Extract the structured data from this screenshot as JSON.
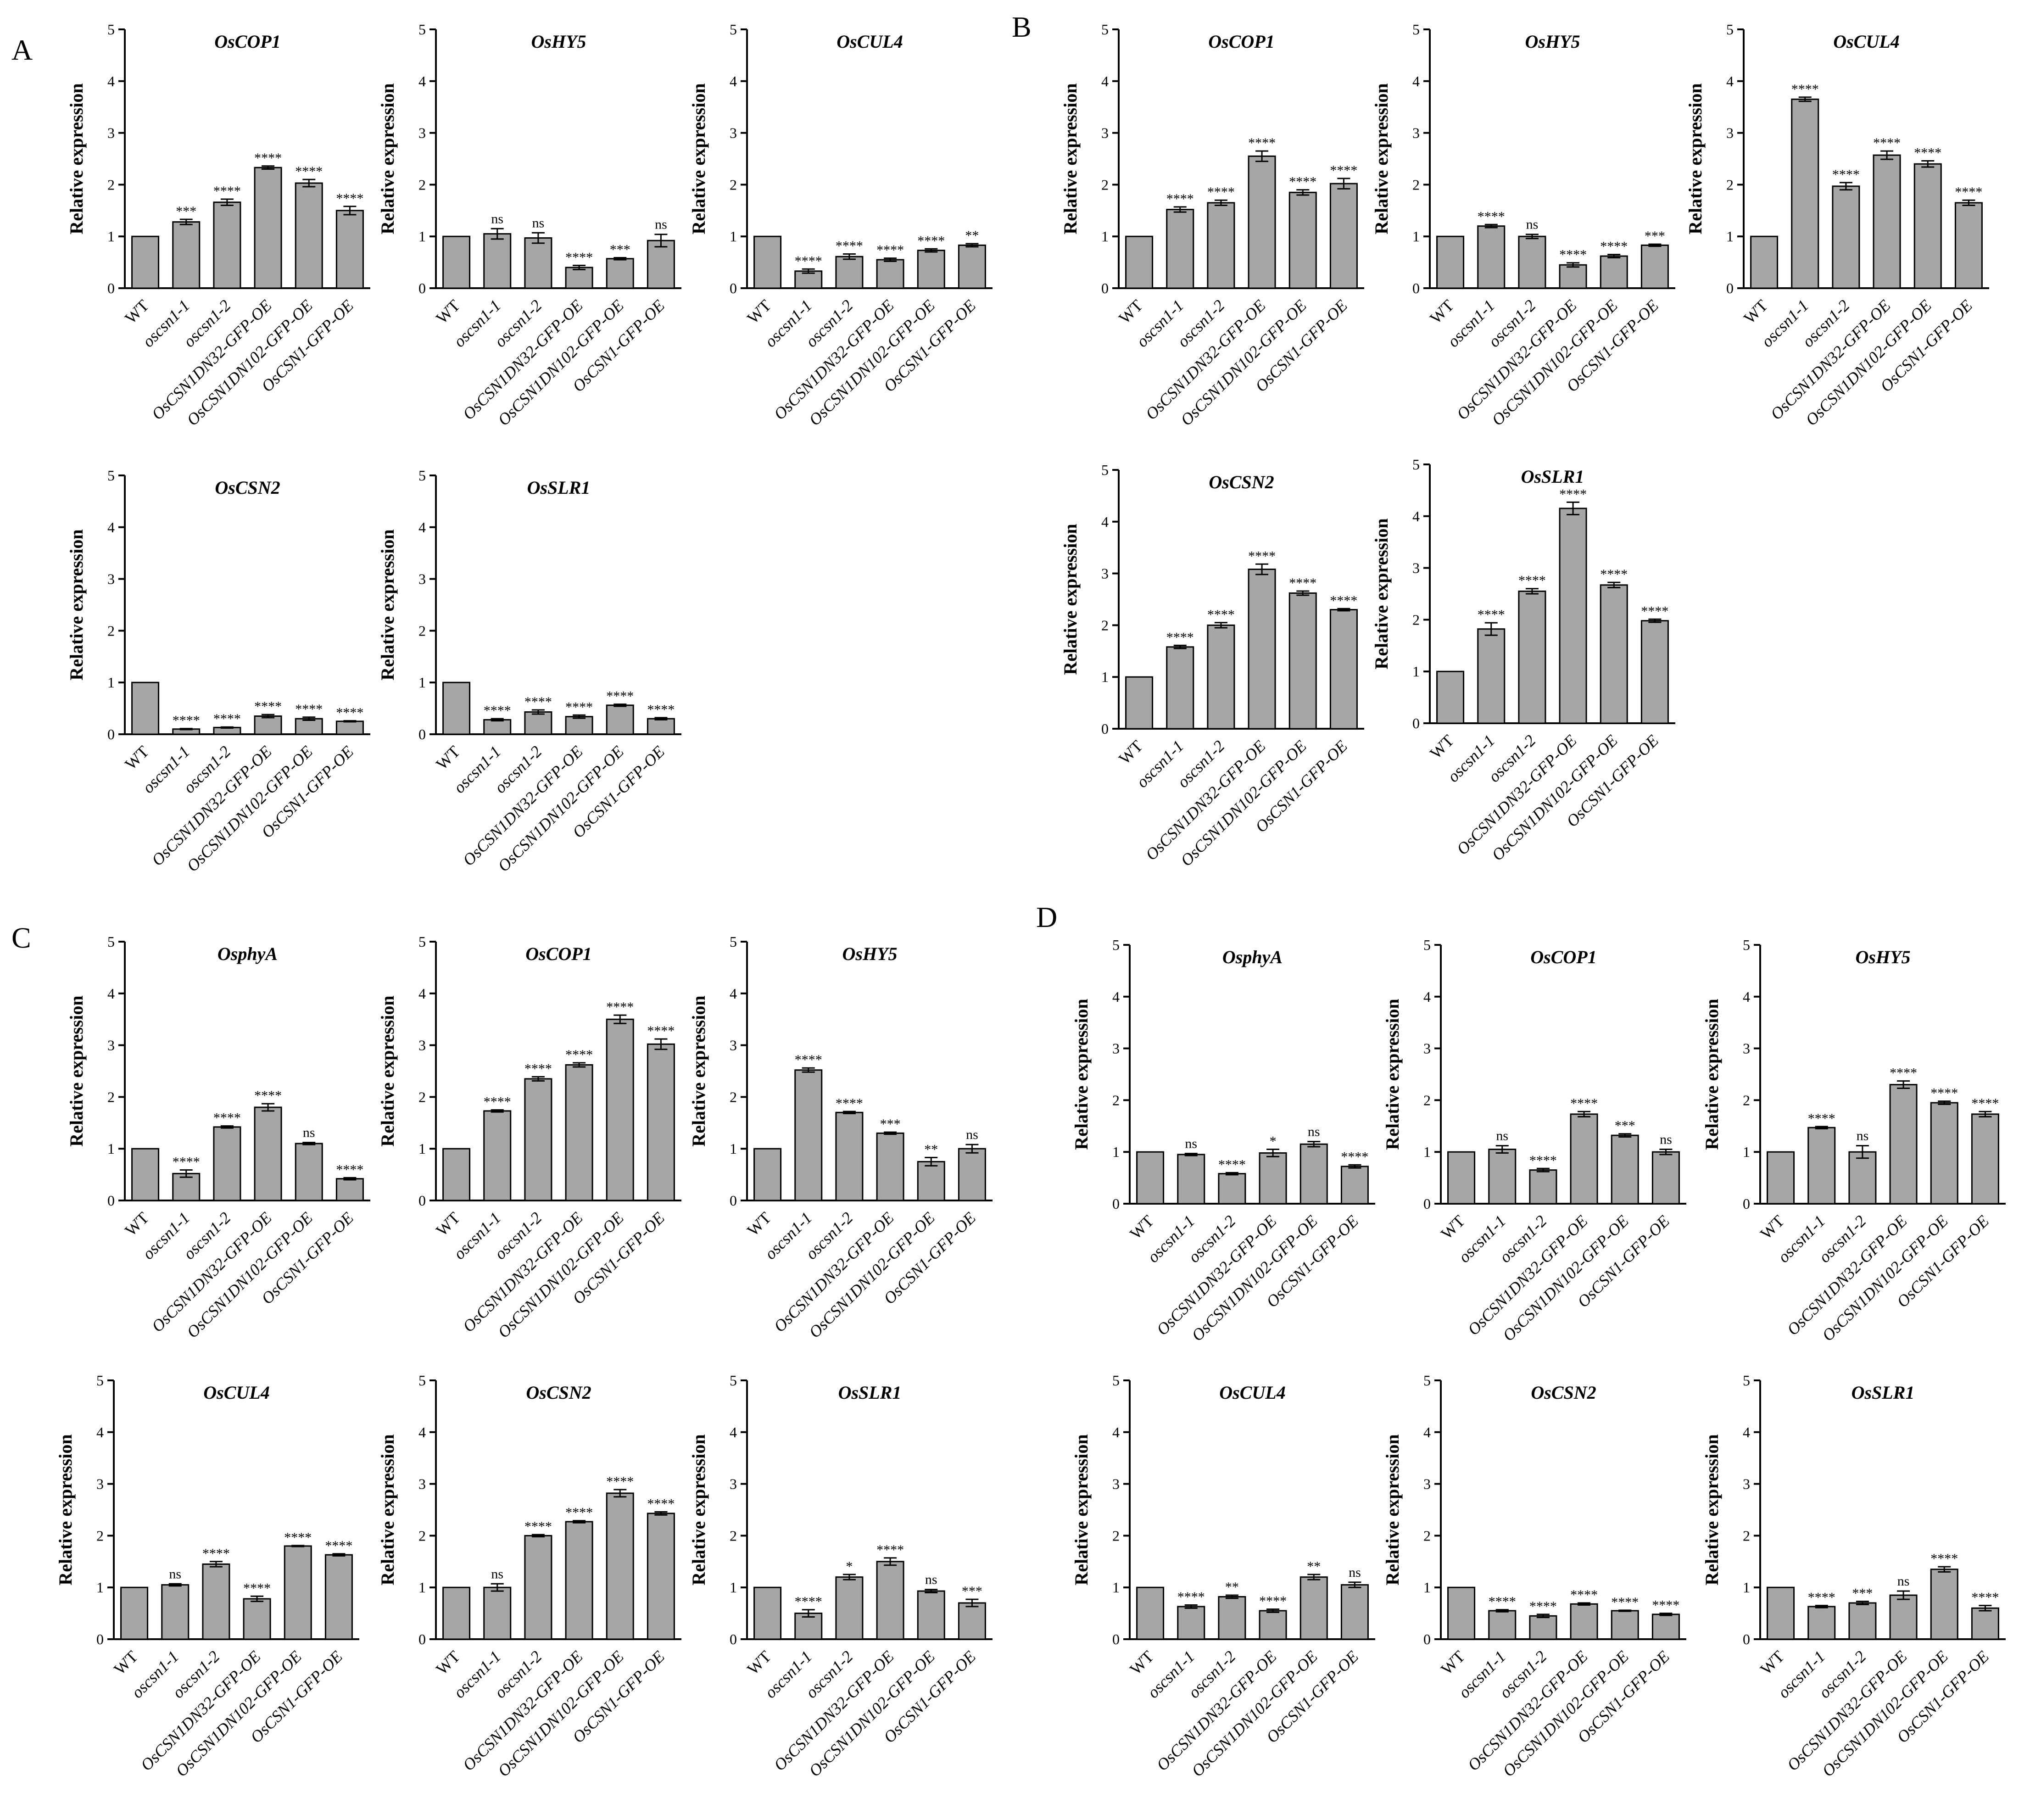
{
  "figure": {
    "panel_labels": [
      "A",
      "B",
      "C",
      "D"
    ]
  },
  "chart_data": [
    {
      "panel": "A",
      "type": "bar",
      "title": "OsCOP1",
      "ylabel": "Relative expression",
      "ylim": [
        0,
        5
      ],
      "yticks": [
        "0",
        "1",
        "2",
        "3",
        "4",
        "5"
      ],
      "categories": [
        "WT",
        "oscsn1-1",
        "oscsn1-2",
        "OsCSN1DN32-GFP-OE",
        "OsCSN1DN102-GFP-OE",
        "OsCSN1-GFP-OE"
      ],
      "values": [
        1.0,
        1.28,
        1.66,
        2.33,
        2.03,
        1.5
      ],
      "errors": [
        0,
        0.05,
        0.06,
        0.03,
        0.07,
        0.08
      ],
      "significance": [
        "",
        "***",
        "****",
        "****",
        "****",
        "****"
      ]
    },
    {
      "panel": "A",
      "type": "bar",
      "title": "OsHY5",
      "ylabel": "Relative expression",
      "ylim": [
        0,
        5
      ],
      "yticks": [
        "0",
        "1",
        "2",
        "3",
        "4",
        "5"
      ],
      "categories": [
        "WT",
        "oscsn1-1",
        "oscsn1-2",
        "OsCSN1DN32-GFP-OE",
        "OsCSN1DN102-GFP-OE",
        "OsCSN1-GFP-OE"
      ],
      "values": [
        1.0,
        1.05,
        0.97,
        0.4,
        0.57,
        0.92
      ],
      "errors": [
        0,
        0.1,
        0.1,
        0.04,
        0.02,
        0.12
      ],
      "significance": [
        "",
        "ns",
        "ns",
        "****",
        "***",
        "ns"
      ]
    },
    {
      "panel": "A",
      "type": "bar",
      "title": "OsCUL4",
      "ylabel": "Relative expression",
      "ylim": [
        0,
        5
      ],
      "yticks": [
        "0",
        "1",
        "2",
        "3",
        "4",
        "5"
      ],
      "categories": [
        "WT",
        "oscsn1-1",
        "oscsn1-2",
        "OsCSN1DN32-GFP-OE",
        "OsCSN1DN102-GFP-OE",
        "OsCSN1-GFP-OE"
      ],
      "values": [
        1.0,
        0.33,
        0.61,
        0.55,
        0.73,
        0.83
      ],
      "errors": [
        0,
        0.04,
        0.05,
        0.03,
        0.03,
        0.03
      ],
      "significance": [
        "",
        "****",
        "****",
        "****",
        "****",
        "**"
      ]
    },
    {
      "panel": "A",
      "type": "bar",
      "title": "OsCSN2",
      "ylabel": "Relative expression",
      "ylim": [
        0,
        5
      ],
      "yticks": [
        "0",
        "1",
        "2",
        "3",
        "4",
        "5"
      ],
      "categories": [
        "WT",
        "oscsn1-1",
        "oscsn1-2",
        "OsCSN1DN32-GFP-OE",
        "OsCSN1DN102-GFP-OE",
        "OsCSN1-GFP-OE"
      ],
      "values": [
        1.0,
        0.1,
        0.13,
        0.35,
        0.3,
        0.25
      ],
      "errors": [
        0,
        0.01,
        0.01,
        0.03,
        0.03,
        0.01
      ],
      "significance": [
        "",
        "****",
        "****",
        "****",
        "****",
        "****"
      ]
    },
    {
      "panel": "A",
      "type": "bar",
      "title": "OsSLR1",
      "ylabel": "Relative expression",
      "ylim": [
        0,
        5
      ],
      "yticks": [
        "0",
        "1",
        "2",
        "3",
        "4",
        "5"
      ],
      "categories": [
        "WT",
        "oscsn1-1",
        "oscsn1-2",
        "OsCSN1DN32-GFP-OE",
        "OsCSN1DN102-GFP-OE",
        "OsCSN1-GFP-OE"
      ],
      "values": [
        1.0,
        0.28,
        0.43,
        0.34,
        0.56,
        0.3
      ],
      "errors": [
        0,
        0.02,
        0.04,
        0.03,
        0.02,
        0.02
      ],
      "significance": [
        "",
        "****",
        "****",
        "****",
        "****",
        "****"
      ]
    },
    {
      "panel": "B",
      "type": "bar",
      "title": "OsCOP1",
      "ylabel": "Relative expression",
      "ylim": [
        0,
        5
      ],
      "yticks": [
        "0",
        "1",
        "2",
        "3",
        "4",
        "5"
      ],
      "categories": [
        "WT",
        "oscsn1-1",
        "oscsn1-2",
        "OsCSN1DN32-GFP-OE",
        "OsCSN1DN102-GFP-OE",
        "OsCSN1-GFP-OE"
      ],
      "values": [
        1.0,
        1.52,
        1.65,
        2.55,
        1.85,
        2.02
      ],
      "errors": [
        0,
        0.05,
        0.05,
        0.1,
        0.05,
        0.1
      ],
      "significance": [
        "",
        "****",
        "****",
        "****",
        "****",
        "****"
      ]
    },
    {
      "panel": "B",
      "type": "bar",
      "title": "OsHY5",
      "ylabel": "Relative expression",
      "ylim": [
        0,
        5
      ],
      "yticks": [
        "0",
        "1",
        "2",
        "3",
        "4",
        "5"
      ],
      "categories": [
        "WT",
        "oscsn1-1",
        "oscsn1-2",
        "OsCSN1DN32-GFP-OE",
        "OsCSN1DN102-GFP-OE",
        "OsCSN1-GFP-OE"
      ],
      "values": [
        1.0,
        1.2,
        1.0,
        0.45,
        0.62,
        0.83
      ],
      "errors": [
        0,
        0.03,
        0.04,
        0.04,
        0.03,
        0.02
      ],
      "significance": [
        "",
        "****",
        "ns",
        "****",
        "****",
        "***"
      ]
    },
    {
      "panel": "B",
      "type": "bar",
      "title": "OsCUL4",
      "ylabel": "Relative expression",
      "ylim": [
        0,
        5
      ],
      "yticks": [
        "0",
        "1",
        "2",
        "3",
        "4",
        "5"
      ],
      "categories": [
        "WT",
        "oscsn1-1",
        "oscsn1-2",
        "OsCSN1DN32-GFP-OE",
        "OsCSN1DN102-GFP-OE",
        "OsCSN1-GFP-OE"
      ],
      "values": [
        1.0,
        3.65,
        1.97,
        2.57,
        2.4,
        1.65
      ],
      "errors": [
        0,
        0.04,
        0.07,
        0.08,
        0.06,
        0.05
      ],
      "significance": [
        "",
        "****",
        "****",
        "****",
        "****",
        "****"
      ]
    },
    {
      "panel": "B",
      "type": "bar",
      "title": "OsCSN2",
      "ylabel": "Relative expression",
      "ylim": [
        0,
        5
      ],
      "yticks": [
        "0",
        "1",
        "2",
        "3",
        "4",
        "5"
      ],
      "categories": [
        "WT",
        "oscsn1-1",
        "oscsn1-2",
        "OsCSN1DN32-GFP-OE",
        "OsCSN1DN102-GFP-OE",
        "OsCSN1-GFP-OE"
      ],
      "values": [
        1.0,
        1.58,
        2.0,
        3.08,
        2.62,
        2.3
      ],
      "errors": [
        0,
        0.03,
        0.05,
        0.1,
        0.04,
        0.02
      ],
      "significance": [
        "",
        "****",
        "****",
        "****",
        "****",
        "****"
      ]
    },
    {
      "panel": "B",
      "type": "bar",
      "title": "OsSLR1",
      "ylabel": "Relative expression",
      "ylim": [
        0,
        5
      ],
      "yticks": [
        "0",
        "1",
        "2",
        "3",
        "4",
        "5"
      ],
      "categories": [
        "WT",
        "oscsn1-1",
        "oscsn1-2",
        "OsCSN1DN32-GFP-OE",
        "OsCSN1DN102-GFP-OE",
        "OsCSN1-GFP-OE"
      ],
      "values": [
        1.0,
        1.82,
        2.55,
        4.15,
        2.67,
        1.98
      ],
      "errors": [
        0,
        0.12,
        0.05,
        0.12,
        0.05,
        0.03
      ],
      "significance": [
        "",
        "****",
        "****",
        "****",
        "****",
        "****"
      ]
    },
    {
      "panel": "C",
      "type": "bar",
      "title": "OsphyA",
      "ylabel": "Relative expression",
      "ylim": [
        0,
        5
      ],
      "yticks": [
        "0",
        "1",
        "2",
        "3",
        "4",
        "5"
      ],
      "categories": [
        "WT",
        "oscsn1-1",
        "oscsn1-2",
        "OsCSN1DN32-GFP-OE",
        "OsCSN1DN102-GFP-OE",
        "OsCSN1-GFP-OE"
      ],
      "values": [
        1.0,
        0.52,
        1.42,
        1.8,
        1.1,
        0.42
      ],
      "errors": [
        0,
        0.07,
        0.02,
        0.07,
        0.02,
        0.02
      ],
      "significance": [
        "",
        "****",
        "****",
        "****",
        "ns",
        "****"
      ]
    },
    {
      "panel": "C",
      "type": "bar",
      "title": "OsCOP1",
      "ylabel": "Relative expression",
      "ylim": [
        0,
        5
      ],
      "yticks": [
        "0",
        "1",
        "2",
        "3",
        "4",
        "5"
      ],
      "categories": [
        "WT",
        "oscsn1-1",
        "oscsn1-2",
        "OsCSN1DN32-GFP-OE",
        "OsCSN1DN102-GFP-OE",
        "OsCSN1-GFP-OE"
      ],
      "values": [
        1.0,
        1.73,
        2.35,
        2.62,
        3.5,
        3.02
      ],
      "errors": [
        0,
        0.02,
        0.04,
        0.04,
        0.08,
        0.1
      ],
      "significance": [
        "",
        "****",
        "****",
        "****",
        "****",
        "****"
      ]
    },
    {
      "panel": "C",
      "type": "bar",
      "title": "OsHY5",
      "ylabel": "Relative expression",
      "ylim": [
        0,
        5
      ],
      "yticks": [
        "0",
        "1",
        "2",
        "3",
        "4",
        "5"
      ],
      "categories": [
        "WT",
        "oscsn1-1",
        "oscsn1-2",
        "OsCSN1DN32-GFP-OE",
        "OsCSN1DN102-GFP-OE",
        "OsCSN1-GFP-OE"
      ],
      "values": [
        1.0,
        2.52,
        1.7,
        1.3,
        0.75,
        1.0
      ],
      "errors": [
        0,
        0.04,
        0.02,
        0.02,
        0.08,
        0.08
      ],
      "significance": [
        "",
        "****",
        "****",
        "***",
        "**",
        "ns"
      ]
    },
    {
      "panel": "C",
      "type": "bar",
      "title": "OsCUL4",
      "ylabel": "Relative expression",
      "ylim": [
        0,
        5
      ],
      "yticks": [
        "0",
        "1",
        "2",
        "3",
        "4",
        "5"
      ],
      "categories": [
        "WT",
        "oscsn1-1",
        "oscsn1-2",
        "OsCSN1DN32-GFP-OE",
        "OsCSN1DN102-GFP-OE",
        "OsCSN1-GFP-OE"
      ],
      "values": [
        1.0,
        1.05,
        1.45,
        0.78,
        1.8,
        1.63
      ],
      "errors": [
        0,
        0.02,
        0.05,
        0.05,
        0.01,
        0.02
      ],
      "significance": [
        "",
        "ns",
        "****",
        "****",
        "****",
        "****"
      ]
    },
    {
      "panel": "C",
      "type": "bar",
      "title": "OsCSN2",
      "ylabel": "Relative expression",
      "ylim": [
        0,
        5
      ],
      "yticks": [
        "0",
        "1",
        "2",
        "3",
        "4",
        "5"
      ],
      "categories": [
        "WT",
        "oscsn1-1",
        "oscsn1-2",
        "OsCSN1DN32-GFP-OE",
        "OsCSN1DN102-GFP-OE",
        "OsCSN1-GFP-OE"
      ],
      "values": [
        1.0,
        1.0,
        2.0,
        2.27,
        2.82,
        2.43
      ],
      "errors": [
        0,
        0.07,
        0.02,
        0.02,
        0.07,
        0.03
      ],
      "significance": [
        "",
        "ns",
        "****",
        "****",
        "****",
        "****"
      ]
    },
    {
      "panel": "C",
      "type": "bar",
      "title": "OsSLR1",
      "ylabel": "Relative expression",
      "ylim": [
        0,
        5
      ],
      "yticks": [
        "0",
        "1",
        "2",
        "3",
        "4",
        "5"
      ],
      "categories": [
        "WT",
        "oscsn1-1",
        "oscsn1-2",
        "OsCSN1DN32-GFP-OE",
        "OsCSN1DN102-GFP-OE",
        "OsCSN1-GFP-OE"
      ],
      "values": [
        1.0,
        0.5,
        1.2,
        1.5,
        0.93,
        0.7
      ],
      "errors": [
        0,
        0.07,
        0.05,
        0.07,
        0.03,
        0.07
      ],
      "significance": [
        "",
        "****",
        "*",
        "****",
        "ns",
        "***"
      ]
    },
    {
      "panel": "D",
      "type": "bar",
      "title": "OsphyA",
      "ylabel": "Relative expression",
      "ylim": [
        0,
        5
      ],
      "yticks": [
        "0",
        "1",
        "2",
        "3",
        "4",
        "5"
      ],
      "categories": [
        "WT",
        "oscsn1-1",
        "oscsn1-2",
        "OsCSN1DN32-GFP-OE",
        "OsCSN1DN102-GFP-OE",
        "OsCSN1-GFP-OE"
      ],
      "values": [
        1.0,
        0.95,
        0.58,
        0.98,
        1.15,
        0.72
      ],
      "errors": [
        0,
        0.02,
        0.02,
        0.07,
        0.05,
        0.03
      ],
      "significance": [
        "",
        "ns",
        "****",
        "*",
        "ns",
        "****"
      ]
    },
    {
      "panel": "D",
      "type": "bar",
      "title": "OsCOP1",
      "ylabel": "Relative expression",
      "ylim": [
        0,
        5
      ],
      "yticks": [
        "0",
        "1",
        "2",
        "3",
        "4",
        "5"
      ],
      "categories": [
        "WT",
        "oscsn1-1",
        "oscsn1-2",
        "OsCSN1DN32-GFP-OE",
        "OsCSN1DN102-GFP-OE",
        "OsCSN1-GFP-OE"
      ],
      "values": [
        1.0,
        1.05,
        0.65,
        1.73,
        1.32,
        1.0
      ],
      "errors": [
        0,
        0.07,
        0.03,
        0.05,
        0.03,
        0.05
      ],
      "significance": [
        "",
        "ns",
        "****",
        "****",
        "***",
        "ns"
      ]
    },
    {
      "panel": "D",
      "type": "bar",
      "title": "OsHY5",
      "ylabel": "Relative expression",
      "ylim": [
        0,
        5
      ],
      "yticks": [
        "0",
        "1",
        "2",
        "3",
        "4",
        "5"
      ],
      "categories": [
        "WT",
        "oscsn1-1",
        "oscsn1-2",
        "OsCSN1DN32-GFP-OE",
        "OsCSN1DN102-GFP-OE",
        "OsCSN1-GFP-OE"
      ],
      "values": [
        1.0,
        1.47,
        1.0,
        2.3,
        1.95,
        1.73
      ],
      "errors": [
        0,
        0.02,
        0.12,
        0.07,
        0.03,
        0.05
      ],
      "significance": [
        "",
        "****",
        "ns",
        "****",
        "****",
        "****"
      ]
    },
    {
      "panel": "D",
      "type": "bar",
      "title": "OsCUL4",
      "ylabel": "Relative expression",
      "ylim": [
        0,
        5
      ],
      "yticks": [
        "0",
        "1",
        "2",
        "3",
        "4",
        "5"
      ],
      "categories": [
        "WT",
        "oscsn1-1",
        "oscsn1-2",
        "OsCSN1DN32-GFP-OE",
        "OsCSN1DN102-GFP-OE",
        "OsCSN1-GFP-OE"
      ],
      "values": [
        1.0,
        0.63,
        0.82,
        0.55,
        1.2,
        1.05
      ],
      "errors": [
        0,
        0.03,
        0.03,
        0.03,
        0.05,
        0.05
      ],
      "significance": [
        "",
        "****",
        "**",
        "****",
        "**",
        "ns"
      ]
    },
    {
      "panel": "D",
      "type": "bar",
      "title": "OsCSN2",
      "ylabel": "Relative expression",
      "ylim": [
        0,
        5
      ],
      "yticks": [
        "0",
        "1",
        "2",
        "3",
        "4",
        "5"
      ],
      "categories": [
        "WT",
        "oscsn1-1",
        "oscsn1-2",
        "OsCSN1DN32-GFP-OE",
        "OsCSN1DN102-GFP-OE",
        "OsCSN1-GFP-OE"
      ],
      "values": [
        1.0,
        0.55,
        0.45,
        0.68,
        0.55,
        0.48
      ],
      "errors": [
        0,
        0.02,
        0.03,
        0.02,
        0.01,
        0.02
      ],
      "significance": [
        "",
        "****",
        "****",
        "****",
        "****",
        "****"
      ]
    },
    {
      "panel": "D",
      "type": "bar",
      "title": "OsSLR1",
      "ylabel": "Relative expression",
      "ylim": [
        0,
        5
      ],
      "yticks": [
        "0",
        "1",
        "2",
        "3",
        "4",
        "5"
      ],
      "categories": [
        "WT",
        "oscsn1-1",
        "oscsn1-2",
        "OsCSN1DN32-GFP-OE",
        "OsCSN1DN102-GFP-OE",
        "OsCSN1-GFP-OE"
      ],
      "values": [
        1.0,
        0.63,
        0.7,
        0.85,
        1.35,
        0.6
      ],
      "errors": [
        0,
        0.02,
        0.03,
        0.08,
        0.05,
        0.05
      ],
      "significance": [
        "",
        "****",
        "***",
        "ns",
        "****",
        "****"
      ]
    }
  ]
}
